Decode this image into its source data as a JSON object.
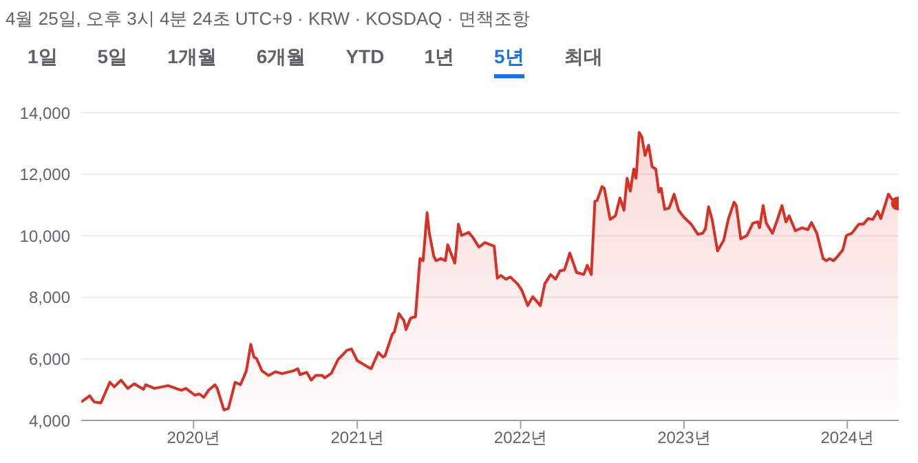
{
  "chart_data": {
    "type": "area",
    "title": "4월 25일, 오후 3시 4분 24초 UTC+9 · KRW · KOSDAQ · 면책조항",
    "annotations": [
      "1일",
      "5일",
      "1개월",
      "6개월",
      "YTD",
      "1년",
      "5년",
      "최대"
    ],
    "x": [
      "2019-04-25",
      "2019-05-14",
      "2019-05-24",
      "2019-06-08",
      "2019-06-28",
      "2019-07-08",
      "2019-07-23",
      "2019-08-07",
      "2019-08-22",
      "2019-09-11",
      "2019-09-16",
      "2019-10-06",
      "2019-11-05",
      "2019-12-05",
      "2019-12-15",
      "2020-01-04",
      "2020-01-14",
      "2020-01-24",
      "2020-02-03",
      "2020-02-18",
      "2020-02-23",
      "2020-03-09",
      "2020-03-19",
      "2020-04-03",
      "2020-04-15",
      "2020-04-28",
      "2020-05-08",
      "2020-05-15",
      "2020-05-21",
      "2020-06-02",
      "2020-06-17",
      "2020-07-02",
      "2020-07-17",
      "2020-08-11",
      "2020-08-21",
      "2020-08-26",
      "2020-09-10",
      "2020-09-20",
      "2020-09-30",
      "2020-10-15",
      "2020-10-20",
      "2020-11-04",
      "2020-11-19",
      "2020-12-09",
      "2020-12-19",
      "2021-01-01",
      "2021-01-22",
      "2021-02-01",
      "2021-02-17",
      "2021-02-27",
      "2021-03-04",
      "2021-03-20",
      "2021-03-25",
      "2021-04-04",
      "2021-04-15",
      "2021-04-20",
      "2021-04-30",
      "2021-05-11",
      "2021-05-21",
      "2021-05-28",
      "2021-06-06",
      "2021-06-11",
      "2021-06-21",
      "2021-06-26",
      "2021-07-07",
      "2021-07-17",
      "2021-07-22",
      "2021-08-07",
      "2021-08-15",
      "2021-08-22",
      "2021-09-07",
      "2021-09-17",
      "2021-09-30",
      "2021-10-13",
      "2021-11-03",
      "2021-11-10",
      "2021-11-18",
      "2021-11-29",
      "2021-12-09",
      "2021-12-25",
      "2022-01-04",
      "2022-01-17",
      "2022-01-28",
      "2022-02-14",
      "2022-02-24",
      "2022-03-09",
      "2022-03-20",
      "2022-03-30",
      "2022-04-09",
      "2022-04-21",
      "2022-05-06",
      "2022-05-22",
      "2022-05-30",
      "2022-06-08",
      "2022-06-16",
      "2022-06-21",
      "2022-07-02",
      "2022-07-07",
      "2022-07-20",
      "2022-08-01",
      "2022-08-11",
      "2022-08-20",
      "2022-08-27",
      "2022-09-03",
      "2022-09-11",
      "2022-09-16",
      "2022-09-23",
      "2022-09-29",
      "2022-10-06",
      "2022-10-14",
      "2022-10-22",
      "2022-10-30",
      "2022-11-06",
      "2022-11-11",
      "2022-11-19",
      "2022-11-29",
      "2022-12-10",
      "2022-12-20",
      "2023-01-01",
      "2023-01-17",
      "2023-02-01",
      "2023-02-12",
      "2023-02-18",
      "2023-02-25",
      "2023-03-05",
      "2023-03-17",
      "2023-03-31",
      "2023-04-10",
      "2023-04-23",
      "2023-04-28",
      "2023-05-08",
      "2023-05-22",
      "2023-06-04",
      "2023-06-15",
      "2023-06-19",
      "2023-06-27",
      "2023-07-04",
      "2023-07-18",
      "2023-07-29",
      "2023-08-08",
      "2023-08-17",
      "2023-08-24",
      "2023-09-07",
      "2023-09-22",
      "2023-10-05",
      "2023-10-13",
      "2023-10-25",
      "2023-11-08",
      "2023-11-15",
      "2023-11-23",
      "2023-12-01",
      "2023-12-11",
      "2023-12-22",
      "2023-12-30",
      "2024-01-11",
      "2024-01-27",
      "2024-02-06",
      "2024-02-17",
      "2024-02-27",
      "2024-03-09",
      "2024-03-16",
      "2024-04-02",
      "2024-04-09",
      "2024-04-23"
    ],
    "series": [
      {
        "color": "#d93025",
        "values": [
          4600,
          4800,
          4600,
          4570,
          5240,
          5090,
          5310,
          5040,
          5190,
          5010,
          5160,
          5040,
          5130,
          4980,
          5040,
          4820,
          4860,
          4750,
          4970,
          5160,
          5040,
          4340,
          4390,
          5240,
          5160,
          5610,
          6470,
          6060,
          6010,
          5610,
          5460,
          5580,
          5520,
          5610,
          5680,
          5490,
          5560,
          5310,
          5460,
          5460,
          5380,
          5530,
          5980,
          6280,
          6320,
          5940,
          5760,
          5680,
          6210,
          6060,
          6100,
          6800,
          6880,
          7470,
          7250,
          6950,
          7320,
          7370,
          9260,
          9190,
          10750,
          10080,
          9340,
          9190,
          9260,
          9190,
          9710,
          9110,
          10380,
          10010,
          10110,
          9930,
          9630,
          9780,
          9660,
          8620,
          8710,
          8590,
          8660,
          8440,
          8220,
          7730,
          8020,
          7730,
          8440,
          8740,
          8590,
          8860,
          8890,
          9440,
          8810,
          8740,
          9040,
          8740,
          11120,
          11150,
          11600,
          11540,
          10530,
          10650,
          11230,
          10830,
          11870,
          11450,
          12170,
          11870,
          13360,
          13210,
          12610,
          12940,
          12240,
          12170,
          11420,
          11540,
          10860,
          10900,
          11350,
          10830,
          10600,
          10380,
          10050,
          10080,
          10230,
          10940,
          10530,
          9510,
          9860,
          10530,
          11090,
          10980,
          9900,
          10010,
          10410,
          10450,
          10260,
          10980,
          10410,
          10080,
          10530,
          10980,
          10450,
          10650,
          10160,
          10260,
          10200,
          10430,
          10080,
          9260,
          9190,
          9260,
          9190,
          9340,
          9540,
          10010,
          10080,
          10380,
          10380,
          10560,
          10530,
          10800,
          10560,
          11350,
          11200,
          11050
        ]
      }
    ],
    "xlim": [
      "2019-04-25",
      "2024-04-25"
    ],
    "xticks": [
      {
        "value": "2020-01-01",
        "label": "2020년"
      },
      {
        "value": "2021-01-01",
        "label": "2021년"
      },
      {
        "value": "2022-01-01",
        "label": "2022년"
      },
      {
        "value": "2023-01-01",
        "label": "2023년"
      },
      {
        "value": "2024-01-01",
        "label": "2024년"
      }
    ],
    "ylim": [
      4000,
      14000
    ],
    "yticks": [
      {
        "value": 4000,
        "label": "4,000"
      },
      {
        "value": 6000,
        "label": "6,000"
      },
      {
        "value": 8000,
        "label": "8,000"
      },
      {
        "value": 10000,
        "label": "10,000"
      },
      {
        "value": 12000,
        "label": "12,000"
      },
      {
        "value": 14000,
        "label": "14,000"
      }
    ],
    "grid": "y"
  }
}
